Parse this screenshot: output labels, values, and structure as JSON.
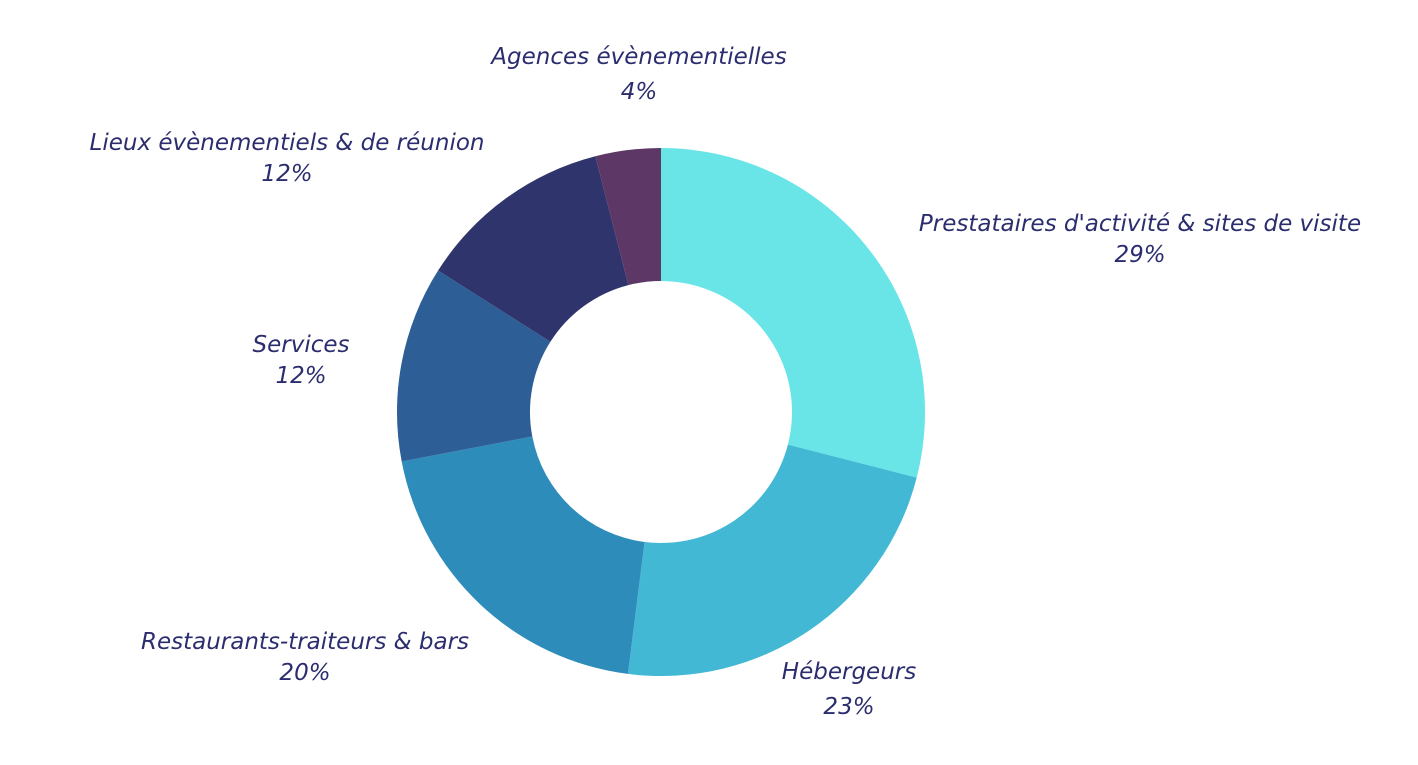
{
  "chart_data": {
    "type": "pie",
    "style": "donut",
    "slices": [
      {
        "label": "Prestataires d'activité & sites de visite",
        "value_label": "29%",
        "value": 29,
        "color": "#69e5e8"
      },
      {
        "label": "Hébergeurs",
        "value_label": "23%",
        "value": 23,
        "color": "#42b8d5"
      },
      {
        "label": "Restaurants-traiteurs & bars",
        "value_label": "20%",
        "value": 20,
        "color": "#2e8cbb"
      },
      {
        "label": "Services",
        "value_label": "12%",
        "value": 12,
        "color": "#2d5e96"
      },
      {
        "label": "Lieux évènementiels & de réunion",
        "value_label": "12%",
        "value": 12,
        "color": "#30346c"
      },
      {
        "label": "Agences évènementielles",
        "value_label": "4%",
        "value": 4,
        "color": "#5d3766"
      }
    ]
  }
}
